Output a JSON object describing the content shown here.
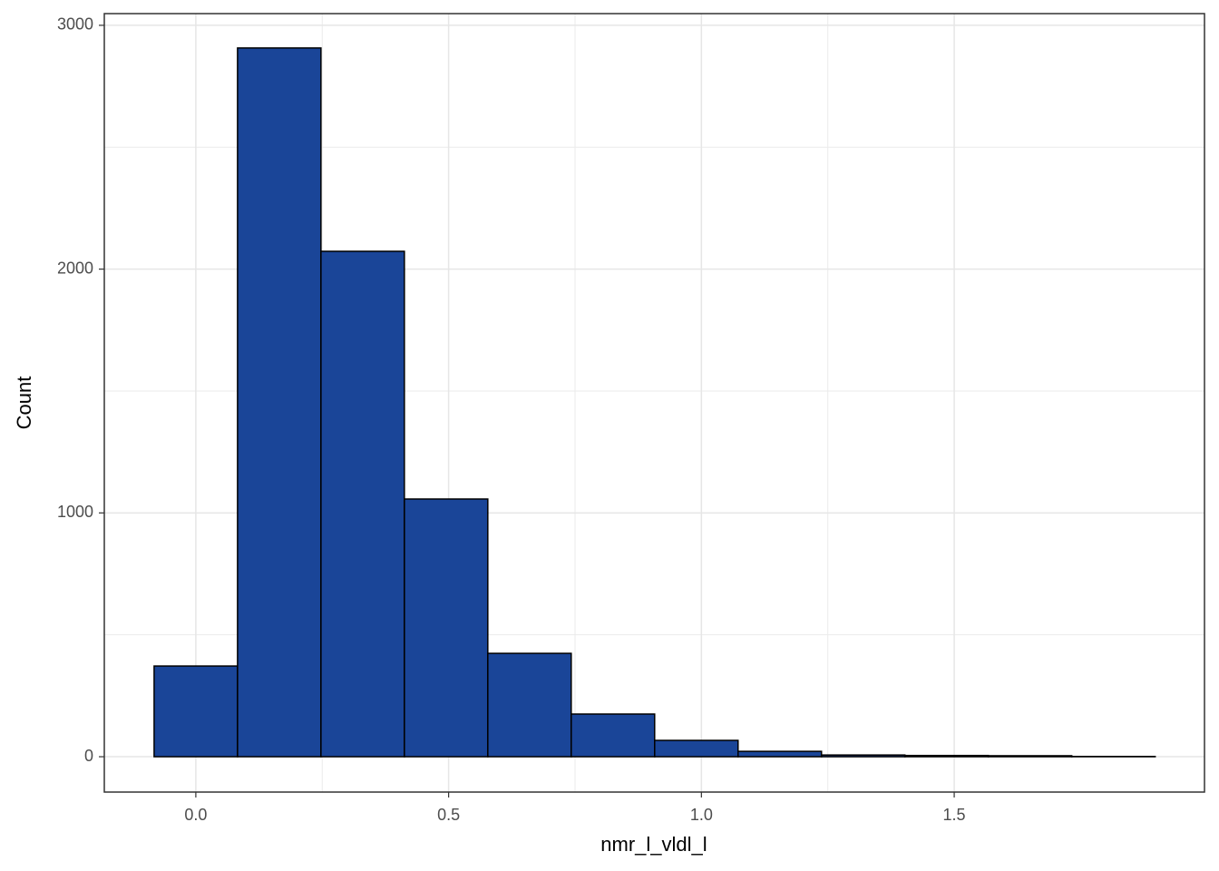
{
  "chart_data": {
    "type": "histogram",
    "x_label": "nmr_l_vldl_l",
    "y_label": "Count",
    "bins": [
      -0.0825,
      0.0825,
      0.2475,
      0.4125,
      0.5775,
      0.7425,
      0.9075,
      1.0725,
      1.2375,
      1.4025,
      1.5675,
      1.7325,
      1.8975
    ],
    "counts": [
      372,
      2907,
      2073,
      1057,
      424,
      175,
      67,
      22,
      7,
      5,
      4,
      1
    ],
    "color": "#1a4598",
    "edge_color": "#000000",
    "xlim": [
      -0.181,
      1.995
    ],
    "ylim": [
      -145,
      3048
    ],
    "xticks": [
      {
        "value": 0,
        "label": "0.0"
      },
      {
        "value": 0.5,
        "label": "0.5"
      },
      {
        "value": 1,
        "label": "1.0"
      },
      {
        "value": 1.5,
        "label": "1.5"
      }
    ],
    "yticks": [
      0,
      1000,
      2000,
      3000
    ],
    "grid": true,
    "minor_grid": true
  }
}
